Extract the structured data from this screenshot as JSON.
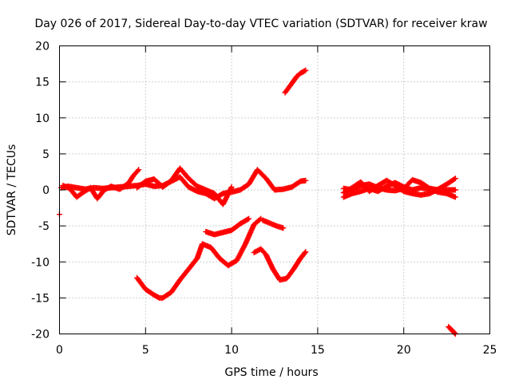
{
  "chart_data": {
    "type": "scatter",
    "title": "Day 026 of 2017, Sidereal Day-to-day VTEC variation (SDTVAR) for receiver kraw",
    "xlabel": "GPS time / hours",
    "ylabel": "SDTVAR / TECUs",
    "xlim": [
      0,
      25
    ],
    "ylim": [
      -20,
      20
    ],
    "xticks": [
      0,
      5,
      10,
      15,
      20,
      25
    ],
    "yticks": [
      -20,
      -15,
      -10,
      -5,
      0,
      5,
      10,
      15,
      20
    ],
    "grid": true,
    "color": "#ff0000",
    "marker": "plus",
    "series": [
      {
        "name": "s1",
        "x": [
          0.1,
          0.5,
          1.0,
          1.5,
          2.0,
          2.5,
          3.0,
          3.5,
          4.0,
          4.5,
          5.0,
          5.5,
          6.0,
          6.5,
          7.0,
          7.5,
          8.0,
          8.5,
          9.0,
          9.5,
          10.0,
          10.5,
          11.0,
          11.5,
          12.0,
          12.5,
          13.0,
          13.5,
          14.0,
          14.3
        ],
        "y": [
          0.3,
          0.5,
          0.3,
          0.1,
          0.3,
          0.2,
          0.3,
          0.4,
          0.5,
          0.6,
          0.8,
          0.5,
          0.6,
          1.2,
          1.8,
          0.4,
          -0.2,
          -0.5,
          -1.2,
          -0.5,
          -0.3,
          0.0,
          0.8,
          2.8,
          1.6,
          0.0,
          0.1,
          0.4,
          1.2,
          1.3
        ]
      },
      {
        "name": "s2",
        "x": [
          0.2,
          0.6,
          1.0,
          1.4,
          1.8,
          2.2,
          2.6,
          3.0,
          3.5,
          4.0,
          4.3,
          4.6
        ],
        "y": [
          0.6,
          0.2,
          -1.0,
          -0.3,
          0.3,
          -1.2,
          0.0,
          0.5,
          0.1,
          0.9,
          2.0,
          2.8
        ]
      },
      {
        "name": "s3",
        "x": [
          4.5,
          5.0,
          5.5,
          6.0,
          6.5,
          7.0,
          7.5,
          8.0,
          8.5,
          9.0,
          9.5,
          10.0
        ],
        "y": [
          0.3,
          1.2,
          1.5,
          0.4,
          1.3,
          3.0,
          1.6,
          0.5,
          0.0,
          -0.5,
          -2.0,
          0.4
        ]
      },
      {
        "name": "s4",
        "x": [
          4.5,
          5.0,
          5.5,
          5.8,
          6.0,
          6.5,
          7.0,
          7.5,
          8.0,
          8.3,
          8.8,
          9.3,
          9.8,
          10.3,
          10.8,
          11.3,
          11.7
        ],
        "y": [
          -12.2,
          -13.8,
          -14.6,
          -15.0,
          -15.0,
          -14.2,
          -12.5,
          -11.0,
          -9.5,
          -7.5,
          -8.0,
          -9.5,
          -10.5,
          -9.8,
          -7.5,
          -4.8,
          -4.0
        ]
      },
      {
        "name": "s5",
        "x": [
          8.5,
          9.0,
          9.5,
          10.0,
          10.5,
          11.0
        ],
        "y": [
          -5.8,
          -6.2,
          -5.9,
          -5.6,
          -4.7,
          -4.0
        ]
      },
      {
        "name": "s6",
        "x": [
          11.8,
          12.2,
          12.6,
          13.0
        ],
        "y": [
          -4.2,
          -4.6,
          -5.0,
          -5.3
        ]
      },
      {
        "name": "s7",
        "x": [
          11.3,
          11.7,
          12.0,
          12.4,
          12.8,
          13.2,
          13.6,
          14.0,
          14.3
        ],
        "y": [
          -8.7,
          -8.2,
          -9.0,
          -11.0,
          -12.5,
          -12.3,
          -11.0,
          -9.5,
          -8.6
        ]
      },
      {
        "name": "s8",
        "x": [
          13.1,
          13.5,
          13.8,
          14.0,
          14.3
        ],
        "y": [
          13.5,
          14.8,
          15.8,
          16.2,
          16.6
        ]
      },
      {
        "name": "s9",
        "x": [
          16.5,
          17.0,
          17.5,
          18.0,
          18.5,
          19.0,
          19.5,
          20.0,
          20.5,
          21.0,
          21.5,
          22.0,
          22.5,
          23.0
        ],
        "y": [
          -0.4,
          0.3,
          1.1,
          -0.2,
          0.6,
          1.3,
          0.6,
          -0.2,
          -0.5,
          -0.7,
          -0.5,
          0.1,
          0.8,
          1.6
        ]
      },
      {
        "name": "s10",
        "x": [
          16.5,
          17.0,
          17.5,
          18.0,
          18.5,
          19.0,
          19.5,
          20.0,
          20.5,
          21.0,
          21.5,
          22.0,
          22.5,
          23.0
        ],
        "y": [
          -1.0,
          -0.5,
          -0.2,
          0.2,
          -0.2,
          0.5,
          1.0,
          0.4,
          0.0,
          0.3,
          0.1,
          -0.3,
          -0.5,
          -1.0
        ]
      },
      {
        "name": "s11",
        "x": [
          16.5,
          17.0,
          17.5,
          18.0,
          18.5,
          19.0,
          19.5,
          20.0,
          20.5,
          21.0,
          21.5,
          22.0,
          22.5,
          23.0
        ],
        "y": [
          0.2,
          0.0,
          0.6,
          0.8,
          0.3,
          0.0,
          -0.1,
          0.2,
          1.4,
          1.0,
          0.2,
          0.0,
          0.0,
          0.0
        ]
      },
      {
        "name": "s12",
        "x": [
          22.6,
          22.8,
          23.0
        ],
        "y": [
          -19.0,
          -19.5,
          -20.0
        ]
      },
      {
        "name": "s13",
        "x": [
          0.0
        ],
        "y": [
          -3.4
        ]
      }
    ]
  }
}
